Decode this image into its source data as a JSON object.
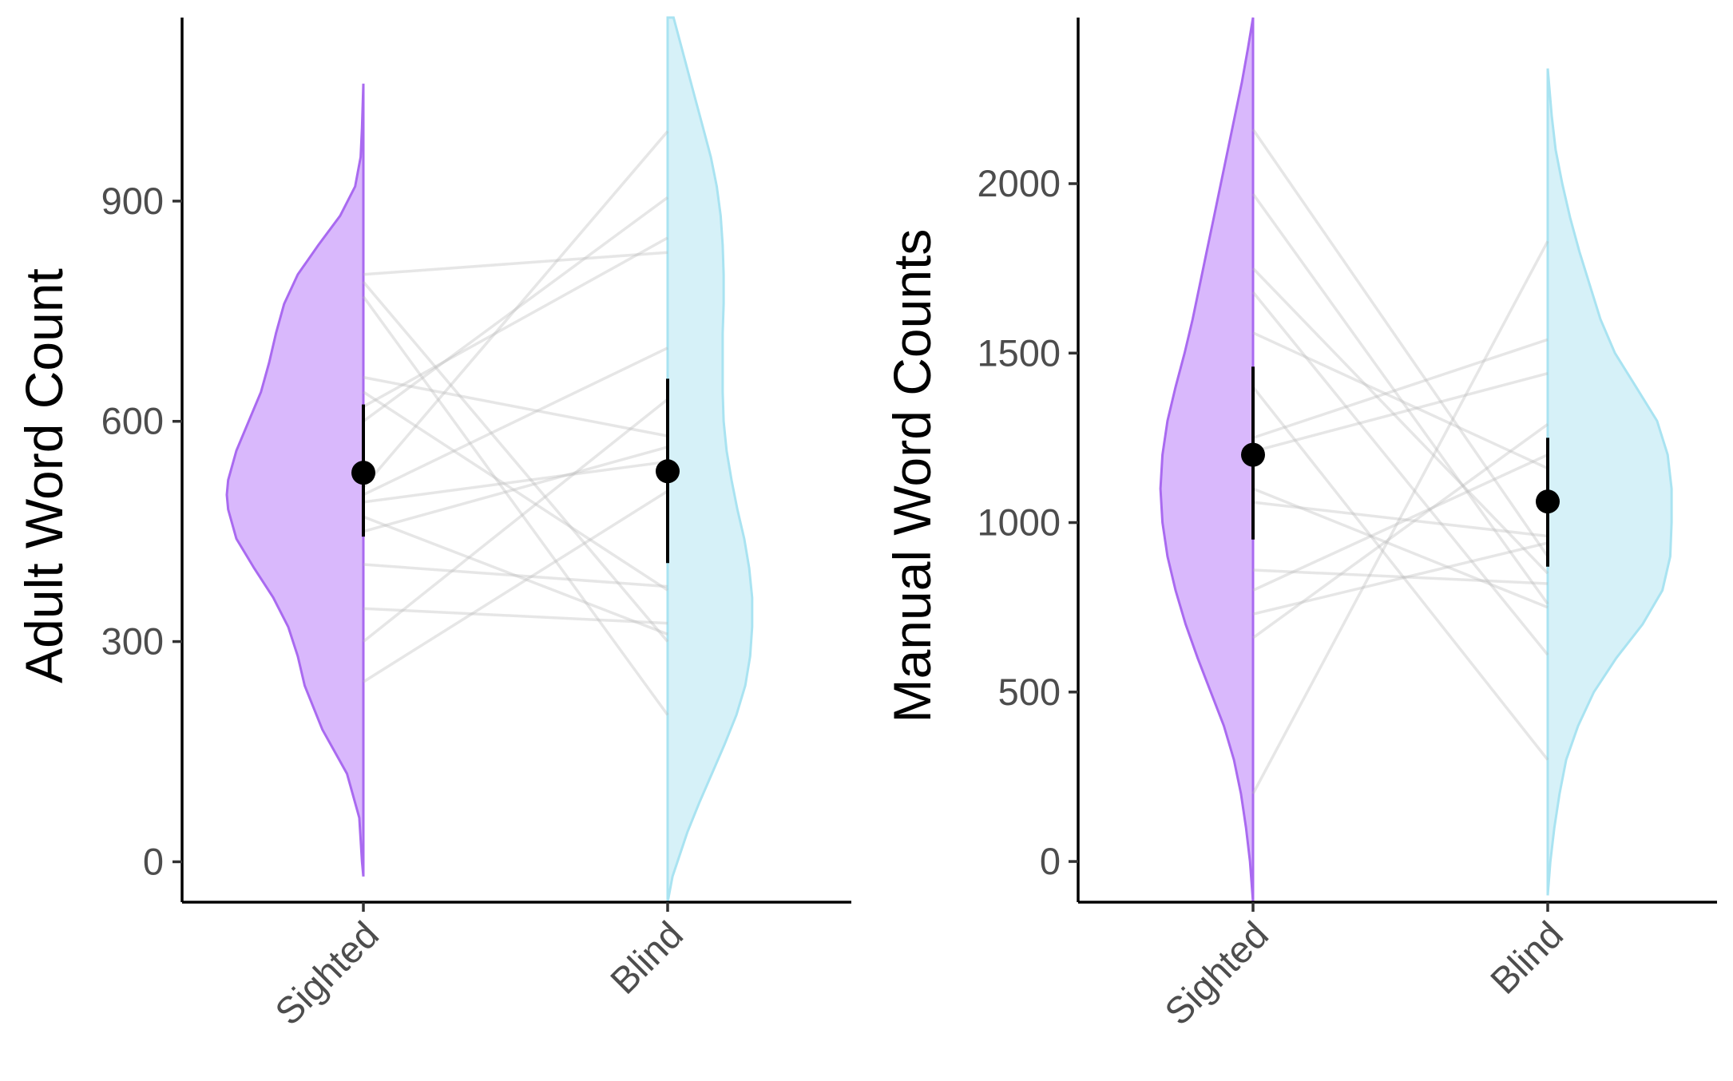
{
  "chart_data": [
    {
      "type": "violin",
      "ylabel": "Adult Word Count",
      "categories": [
        "Sighted",
        "Blind"
      ],
      "yticks": [
        0,
        300,
        600,
        900
      ],
      "ylim": [
        -55,
        1150
      ],
      "colors": {
        "Sighted": "#d9b8fc",
        "Sighted_edge": "#a96af0",
        "Blind": "#d6f1f8",
        "Blind_edge": "#a9e3f1"
      },
      "means": {
        "Sighted": 530,
        "Blind": 532
      },
      "error_bars": {
        "Sighted": [
          443,
          623
        ],
        "Blind": [
          407,
          658
        ]
      },
      "density": {
        "Sighted": {
          "y": [
            -20,
            0,
            60,
            120,
            180,
            240,
            280,
            320,
            360,
            400,
            440,
            480,
            500,
            520,
            560,
            600,
            640,
            680,
            720,
            760,
            800,
            840,
            880,
            920,
            960,
            1000,
            1060
          ],
          "w": [
            0.0,
            0.01,
            0.03,
            0.12,
            0.3,
            0.43,
            0.48,
            0.55,
            0.66,
            0.8,
            0.93,
            0.99,
            1.0,
            0.99,
            0.93,
            0.84,
            0.75,
            0.69,
            0.64,
            0.58,
            0.48,
            0.33,
            0.17,
            0.06,
            0.02,
            0.01,
            0.0
          ]
        },
        "Blind": {
          "y": [
            -55,
            -20,
            0,
            40,
            80,
            120,
            160,
            200,
            240,
            280,
            320,
            360,
            400,
            440,
            480,
            520,
            560,
            600,
            640,
            680,
            720,
            760,
            800,
            840,
            880,
            920,
            960,
            1000,
            1040,
            1080,
            1120,
            1150
          ],
          "w": [
            0.0,
            0.05,
            0.1,
            0.2,
            0.32,
            0.45,
            0.58,
            0.7,
            0.79,
            0.84,
            0.86,
            0.86,
            0.83,
            0.78,
            0.71,
            0.65,
            0.6,
            0.57,
            0.56,
            0.56,
            0.56,
            0.57,
            0.57,
            0.56,
            0.54,
            0.5,
            0.44,
            0.36,
            0.28,
            0.2,
            0.12,
            0.06
          ]
        }
      },
      "pairs": [
        [
          800,
          830
        ],
        [
          790,
          300
        ],
        [
          770,
          200
        ],
        [
          660,
          580
        ],
        [
          640,
          370
        ],
        [
          620,
          850
        ],
        [
          600,
          905
        ],
        [
          510,
          995
        ],
        [
          500,
          700
        ],
        [
          490,
          545
        ],
        [
          470,
          310
        ],
        [
          450,
          565
        ],
        [
          405,
          375
        ],
        [
          345,
          325
        ],
        [
          300,
          630
        ],
        [
          245,
          505
        ]
      ]
    },
    {
      "type": "violin",
      "ylabel": "Manual Word Counts",
      "categories": [
        "Sighted",
        "Blind"
      ],
      "yticks": [
        0,
        500,
        1000,
        1500,
        2000
      ],
      "ylim": [
        -120,
        2490
      ],
      "colors": {
        "Sighted": "#d9b8fc",
        "Sighted_edge": "#a96af0",
        "Blind": "#d6f1f8",
        "Blind_edge": "#a9e3f1"
      },
      "means": {
        "Sighted": 1200,
        "Blind": 1062
      },
      "error_bars": {
        "Sighted": [
          950,
          1460
        ],
        "Blind": [
          870,
          1250
        ]
      },
      "density": {
        "Sighted": {
          "y": [
            -120,
            0,
            100,
            200,
            300,
            400,
            500,
            600,
            700,
            800,
            900,
            1000,
            1100,
            1200,
            1300,
            1400,
            1500,
            1600,
            1700,
            1800,
            1900,
            2000,
            2100,
            2200,
            2300,
            2400,
            2490
          ],
          "w": [
            0.0,
            0.03,
            0.07,
            0.12,
            0.19,
            0.29,
            0.42,
            0.55,
            0.67,
            0.77,
            0.85,
            0.9,
            0.92,
            0.9,
            0.85,
            0.77,
            0.68,
            0.6,
            0.53,
            0.46,
            0.39,
            0.32,
            0.25,
            0.18,
            0.11,
            0.05,
            0.0
          ]
        },
        "Blind": {
          "y": [
            -100,
            0,
            100,
            200,
            300,
            400,
            500,
            600,
            700,
            800,
            900,
            1000,
            1100,
            1200,
            1300,
            1400,
            1500,
            1600,
            1700,
            1800,
            1900,
            2000,
            2100,
            2200,
            2340
          ],
          "w": [
            0.0,
            0.02,
            0.05,
            0.09,
            0.14,
            0.23,
            0.35,
            0.52,
            0.72,
            0.87,
            0.93,
            0.94,
            0.94,
            0.91,
            0.83,
            0.67,
            0.51,
            0.4,
            0.32,
            0.24,
            0.17,
            0.11,
            0.06,
            0.03,
            0.0
          ]
        }
      },
      "pairs": [
        [
          2160,
          900
        ],
        [
          1970,
          760
        ],
        [
          1750,
          850
        ],
        [
          1680,
          610
        ],
        [
          1560,
          1160
        ],
        [
          1400,
          300
        ],
        [
          1250,
          1540
        ],
        [
          1210,
          1440
        ],
        [
          1100,
          750
        ],
        [
          1060,
          960
        ],
        [
          860,
          820
        ],
        [
          800,
          1200
        ],
        [
          730,
          940
        ],
        [
          660,
          1290
        ],
        [
          200,
          1830
        ]
      ]
    }
  ]
}
